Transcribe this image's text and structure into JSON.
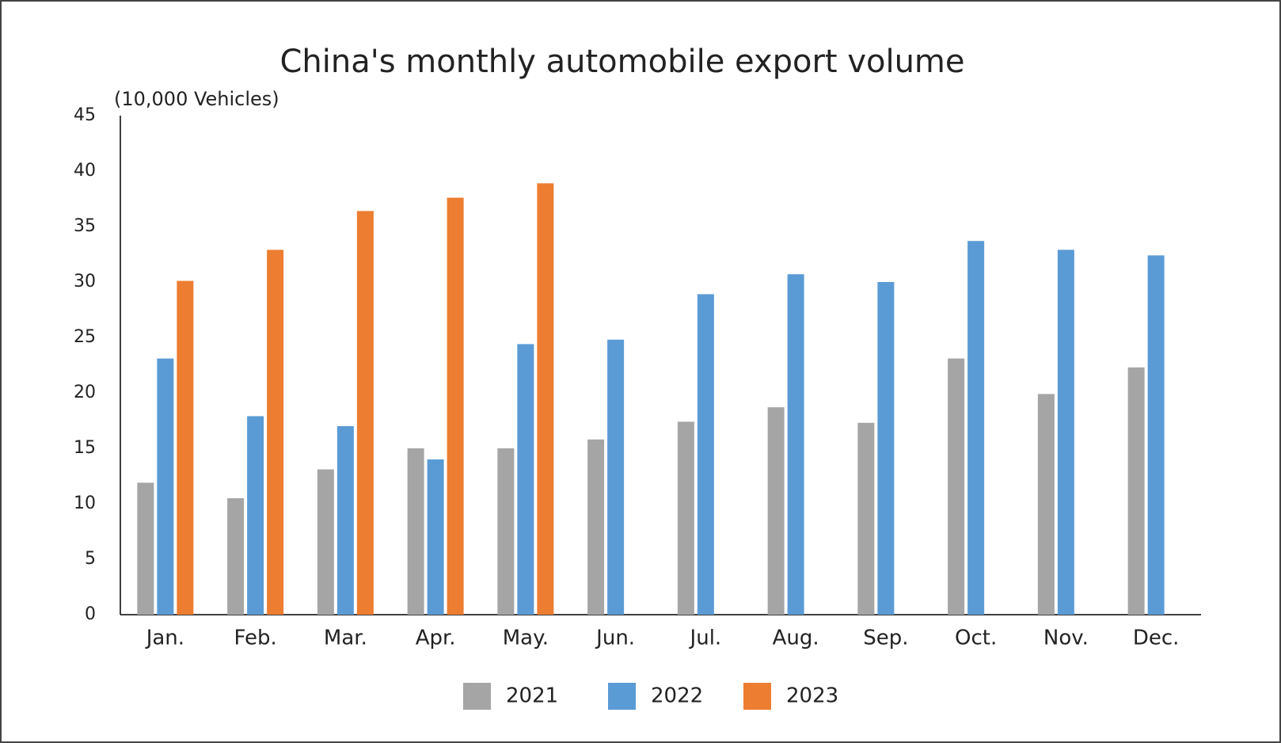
{
  "chart_data": {
    "type": "bar",
    "title": "China's monthly automobile export volume",
    "y_label": "(10,000 Vehicles)",
    "categories": [
      "Jan.",
      "Feb.",
      "Mar.",
      "Apr.",
      "May.",
      "Jun.",
      "Jul.",
      "Aug.",
      "Sep.",
      "Oct.",
      "Nov.",
      "Dec."
    ],
    "series": [
      {
        "name": "2021",
        "color": "#a5a5a5",
        "values": [
          11.9,
          10.5,
          13.1,
          15.0,
          15.0,
          15.8,
          17.4,
          18.7,
          17.3,
          23.1,
          19.9,
          22.3
        ]
      },
      {
        "name": "2022",
        "color": "#5b9bd5",
        "values": [
          23.1,
          17.9,
          17.0,
          14.0,
          24.4,
          24.8,
          28.9,
          30.7,
          30.0,
          33.7,
          32.9,
          32.4
        ]
      },
      {
        "name": "2023",
        "color": "#ed7d31",
        "values": [
          30.1,
          32.9,
          36.4,
          37.6,
          38.9,
          null,
          null,
          null,
          null,
          null,
          null,
          null
        ]
      }
    ],
    "ylim": [
      0,
      45
    ],
    "yticks": [
      0,
      5,
      10,
      15,
      20,
      25,
      30,
      35,
      40,
      45
    ],
    "grid": false,
    "legend": "bottom"
  }
}
